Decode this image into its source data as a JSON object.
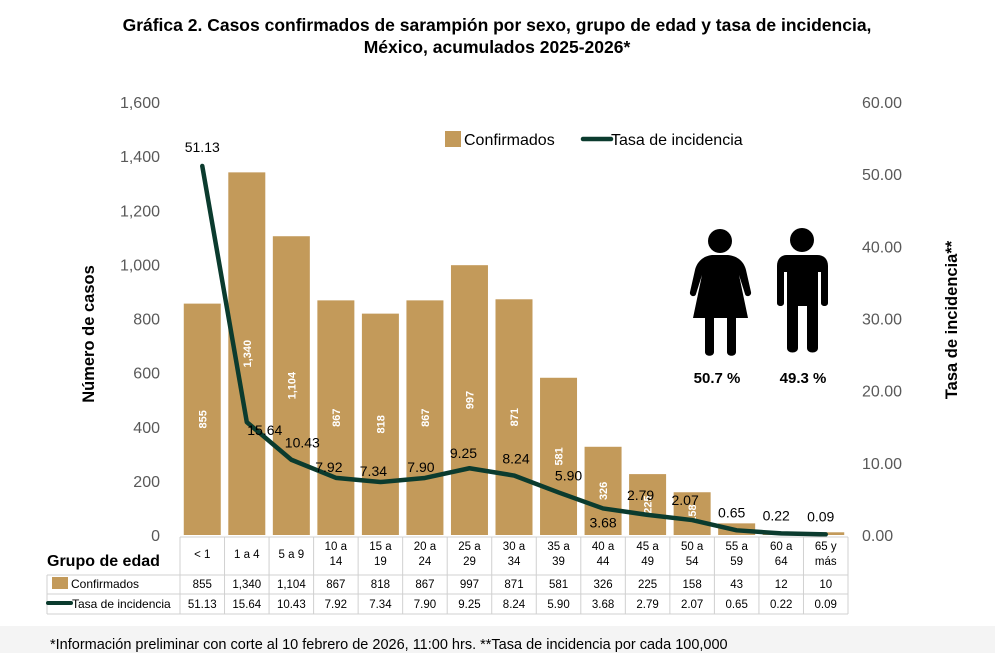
{
  "chart_data": {
    "type": "bar",
    "title_line1": "Gráfica 2. Casos confirmados  de sarampión por sexo, grupo de edad y tasa de incidencia,",
    "title_line2": "México, acumulados 2025-2026*",
    "categories": [
      [
        "< 1"
      ],
      [
        "1 a 4"
      ],
      [
        "5 a 9"
      ],
      [
        "10 a",
        "14"
      ],
      [
        "15 a",
        "19"
      ],
      [
        "20 a",
        "24"
      ],
      [
        "25 a",
        "29"
      ],
      [
        "30 a",
        "34"
      ],
      [
        "35 a",
        "39"
      ],
      [
        "40 a",
        "44"
      ],
      [
        "45 a",
        "49"
      ],
      [
        "50 a",
        "54"
      ],
      [
        "55 a",
        "59"
      ],
      [
        "60 a",
        "64"
      ],
      [
        "65 y",
        "más"
      ]
    ],
    "series": [
      {
        "name": "Confirmados",
        "type": "bar",
        "axis": "left",
        "color": "#C39A5A",
        "values": [
          855,
          1340,
          1104,
          867,
          818,
          867,
          997,
          871,
          581,
          326,
          225,
          158,
          43,
          12,
          10
        ],
        "labels": [
          "855",
          "1,340",
          "1,104",
          "867",
          "818",
          "867",
          "997",
          "871",
          "581",
          "326",
          "225",
          "158",
          "43",
          "12",
          "10"
        ]
      },
      {
        "name": "Tasa de incidencia",
        "type": "line",
        "axis": "right",
        "color": "#0B3B2E",
        "values": [
          51.13,
          15.64,
          10.43,
          7.92,
          7.34,
          7.9,
          9.25,
          8.24,
          5.9,
          3.68,
          2.79,
          2.07,
          0.65,
          0.22,
          0.09
        ],
        "labels": [
          "51.13",
          "15.64",
          "10.43",
          "7.92",
          "7.34",
          "7.90",
          "9.25",
          "8.24",
          "5.90",
          "3.68",
          "2.79",
          "2.07",
          "0.65",
          "0.22",
          "0.09"
        ]
      }
    ],
    "bar_labels_shown": [
      true,
      true,
      true,
      true,
      true,
      true,
      true,
      true,
      true,
      true,
      true,
      true,
      false,
      false,
      false
    ],
    "y_left": {
      "label": "Número de casos",
      "min": 0,
      "max": 1600,
      "ticks": [
        0,
        200,
        400,
        600,
        800,
        1000,
        1200,
        1400,
        1600
      ],
      "tick_labels": [
        "0",
        "200",
        "400",
        "600",
        "800",
        "1,000",
        "1,200",
        "1,400",
        "1,600"
      ]
    },
    "y_right": {
      "label": "Tasa de incidencia**",
      "min": 0,
      "max": 60,
      "ticks": [
        0,
        10,
        20,
        30,
        40,
        50,
        60
      ],
      "tick_labels": [
        "0.00",
        "10.00",
        "20.00",
        "30.00",
        "40.00",
        "50.00",
        "60.00"
      ]
    },
    "legend": {
      "position": "top-center",
      "items": [
        {
          "label": "Confirmados",
          "color": "#C39A5A"
        },
        {
          "label": "Tasa de incidencia",
          "color": "#0B3B2E"
        }
      ]
    },
    "grid": false,
    "data_table": {
      "header": "Grupo de edad",
      "rows": [
        {
          "label": "Confirmados",
          "values": [
            "855",
            "1,340",
            "1,104",
            "867",
            "818",
            "867",
            "997",
            "871",
            "581",
            "326",
            "225",
            "158",
            "43",
            "12",
            "10"
          ]
        },
        {
          "label": "Tasa de incidencia",
          "values": [
            "51.13",
            "15.64",
            "10.43",
            "7.92",
            "7.34",
            "7.90",
            "9.25",
            "8.24",
            "5.90",
            "3.68",
            "2.79",
            "2.07",
            "0.65",
            "0.22",
            "0.09"
          ]
        }
      ]
    },
    "sex": [
      {
        "label": "Mujeres",
        "percent": 50.7,
        "text": "50.7 %",
        "icon": "female-icon"
      },
      {
        "label": "Hombres",
        "percent": 49.3,
        "text": "49.3 %",
        "icon": "male-icon"
      }
    ],
    "footnote": "*Información preliminar con corte al 10  febrero de 2026, 11:00 hrs. **Tasa de incidencia por cada 100,000"
  }
}
